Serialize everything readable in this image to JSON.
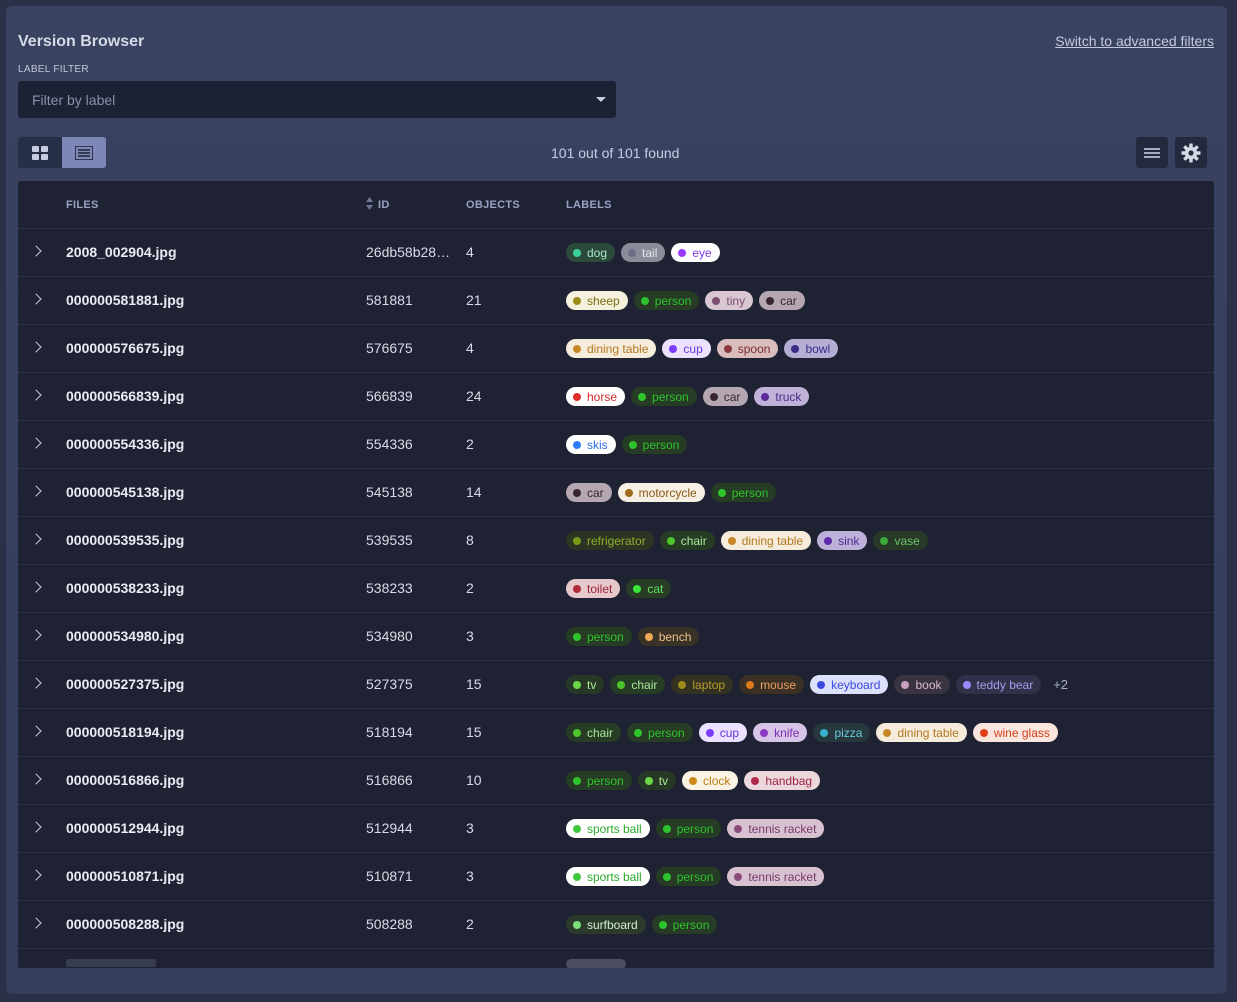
{
  "header": {
    "title": "Version Browser",
    "advanced_link": "Switch to advanced filters",
    "filter_label": "LABEL FILTER",
    "filter_placeholder": "Filter by label",
    "count_text": "101 out of 101 found"
  },
  "columns": {
    "files": "FILES",
    "id": "ID",
    "objects": "OBJECTS",
    "labels": "LABELS"
  },
  "rows": [
    {
      "file": "2008_002904.jpg",
      "id": "26db58b28…",
      "objects": "4",
      "labels": [
        [
          "dog",
          "#3ecf9a",
          "#2c4a3b",
          "#a7e8c9"
        ],
        [
          "tail",
          "#6d6f86",
          "#8a8d99",
          "#e4e5ea"
        ],
        [
          "eye",
          "#9a3cff",
          "#ffffff",
          "#7f3fe6"
        ]
      ]
    },
    {
      "file": "000000581881.jpg",
      "id": "581881",
      "objects": "21",
      "labels": [
        [
          "sheep",
          "#9b8b1c",
          "#f5f1dc",
          "#7c6c10"
        ],
        [
          "person",
          "#2ec42e",
          "#273c25",
          "#2ec42e"
        ],
        [
          "tiny",
          "#7a4f6f",
          "#d9c8d4",
          "#7a4f6f"
        ],
        [
          "car",
          "#3a2432",
          "#b4a7b1",
          "#3a2432"
        ]
      ]
    },
    {
      "file": "000000576675.jpg",
      "id": "576675",
      "objects": "4",
      "labels": [
        [
          "dining table",
          "#c8862a",
          "#f6ecdc",
          "#b37820"
        ],
        [
          "cup",
          "#7a3cff",
          "#ece2ff",
          "#6a36e0"
        ],
        [
          "spoon",
          "#8a3a3a",
          "#d9bcbc",
          "#7a3030"
        ],
        [
          "bowl",
          "#3a2a8a",
          "#b4afd2",
          "#3a2a8a"
        ]
      ]
    },
    {
      "file": "000000566839.jpg",
      "id": "566839",
      "objects": "24",
      "labels": [
        [
          "horse",
          "#e02b2b",
          "#ffffff",
          "#d22a2a"
        ],
        [
          "person",
          "#2ec42e",
          "#273c25",
          "#2ec42e"
        ],
        [
          "car",
          "#3a2432",
          "#b4a7b1",
          "#3a2432"
        ],
        [
          "truck",
          "#5a2a9a",
          "#bfb1d8",
          "#4e2a86"
        ]
      ]
    },
    {
      "file": "000000554336.jpg",
      "id": "554336",
      "objects": "2",
      "labels": [
        [
          "skis",
          "#2f7cff",
          "#ffffff",
          "#2f6be0"
        ],
        [
          "person",
          "#2ec42e",
          "#273c25",
          "#2ec42e"
        ]
      ]
    },
    {
      "file": "000000545138.jpg",
      "id": "545138",
      "objects": "14",
      "labels": [
        [
          "car",
          "#3a2432",
          "#b4a7b1",
          "#3a2432"
        ],
        [
          "motorcycle",
          "#a06a1a",
          "#f6efe4",
          "#8a5a14"
        ],
        [
          "person",
          "#2ec42e",
          "#273c25",
          "#2ec42e"
        ]
      ]
    },
    {
      "file": "000000539535.jpg",
      "id": "539535",
      "objects": "8",
      "labels": [
        [
          "refrigerator",
          "#7a9a1a",
          "#2c3524",
          "#8fae2a"
        ],
        [
          "chair",
          "#4ec42e",
          "#273c25",
          "#a8e89a"
        ],
        [
          "dining table",
          "#c8862a",
          "#f6ecdc",
          "#b37820"
        ],
        [
          "sink",
          "#5a2aa8",
          "#bdb1d9",
          "#4e2a8e"
        ],
        [
          "vase",
          "#3aa83a",
          "#283a27",
          "#68c068"
        ]
      ]
    },
    {
      "file": "000000538233.jpg",
      "id": "538233",
      "objects": "2",
      "labels": [
        [
          "toilet",
          "#b02a3a",
          "#e7c9cd",
          "#9a2434"
        ],
        [
          "cat",
          "#3ae83a",
          "#283c26",
          "#5ee05e"
        ]
      ]
    },
    {
      "file": "000000534980.jpg",
      "id": "534980",
      "objects": "3",
      "labels": [
        [
          "person",
          "#2ec42e",
          "#273c25",
          "#2ec42e"
        ],
        [
          "bench",
          "#f0a85a",
          "#393227",
          "#f0c08a"
        ]
      ]
    },
    {
      "file": "000000527375.jpg",
      "id": "527375",
      "objects": "15",
      "labels": [
        [
          "tv",
          "#6ad84a",
          "#283826",
          "#a8e88e"
        ],
        [
          "chair",
          "#4ec42e",
          "#273c25",
          "#a8e89a"
        ],
        [
          "laptop",
          "#a08a1a",
          "#343222",
          "#b89a2a"
        ],
        [
          "mouse",
          "#e07a1a",
          "#3a3024",
          "#f0a060"
        ],
        [
          "keyboard",
          "#3a4ae0",
          "#dde0fa",
          "#3a4ae0"
        ],
        [
          "book",
          "#c8a0c0",
          "#3a3440",
          "#d9b8d2"
        ],
        [
          "teddy bear",
          "#9a8aff",
          "#2f3248",
          "#a89cf0"
        ]
      ],
      "more": "+2"
    },
    {
      "file": "000000518194.jpg",
      "id": "518194",
      "objects": "15",
      "labels": [
        [
          "chair",
          "#4ec42e",
          "#273c25",
          "#a8e89a"
        ],
        [
          "person",
          "#2ec42e",
          "#273c25",
          "#2ec42e"
        ],
        [
          "cup",
          "#7a3cff",
          "#ece2ff",
          "#6a36e0"
        ],
        [
          "knife",
          "#8a3ac0",
          "#d7c5e8",
          "#7a30b0"
        ],
        [
          "pizza",
          "#3ab0c8",
          "#26383e",
          "#6ac8d8"
        ],
        [
          "dining table",
          "#c8862a",
          "#f6ecdc",
          "#b37820"
        ],
        [
          "wine glass",
          "#e0401a",
          "#fbe6df",
          "#d0401a"
        ]
      ]
    },
    {
      "file": "000000516866.jpg",
      "id": "516866",
      "objects": "10",
      "labels": [
        [
          "person",
          "#2ec42e",
          "#273c25",
          "#2ec42e"
        ],
        [
          "tv",
          "#6ad84a",
          "#283826",
          "#a8e88e"
        ],
        [
          "clock",
          "#d08a1a",
          "#fbf3e4",
          "#c07c12"
        ],
        [
          "handbag",
          "#b02a4a",
          "#ecd7dc",
          "#9a2442"
        ]
      ]
    },
    {
      "file": "000000512944.jpg",
      "id": "512944",
      "objects": "3",
      "labels": [
        [
          "sports ball",
          "#3ec83e",
          "#ffffff",
          "#2aa82a"
        ],
        [
          "person",
          "#2ec42e",
          "#273c25",
          "#2ec42e"
        ],
        [
          "tennis racket",
          "#8a4a7a",
          "#d8c2d2",
          "#7a3a6a"
        ]
      ]
    },
    {
      "file": "000000510871.jpg",
      "id": "510871",
      "objects": "3",
      "labels": [
        [
          "sports ball",
          "#3ec83e",
          "#ffffff",
          "#2aa82a"
        ],
        [
          "person",
          "#2ec42e",
          "#273c25",
          "#2ec42e"
        ],
        [
          "tennis racket",
          "#8a4a7a",
          "#d8c2d2",
          "#7a3a6a"
        ]
      ]
    },
    {
      "file": "000000508288.jpg",
      "id": "508288",
      "objects": "2",
      "labels": [
        [
          "surfboard",
          "#7ae07a",
          "#2c3a2b",
          "#d0f0d0"
        ],
        [
          "person",
          "#2ec42e",
          "#273c25",
          "#2ec42e"
        ]
      ]
    }
  ]
}
